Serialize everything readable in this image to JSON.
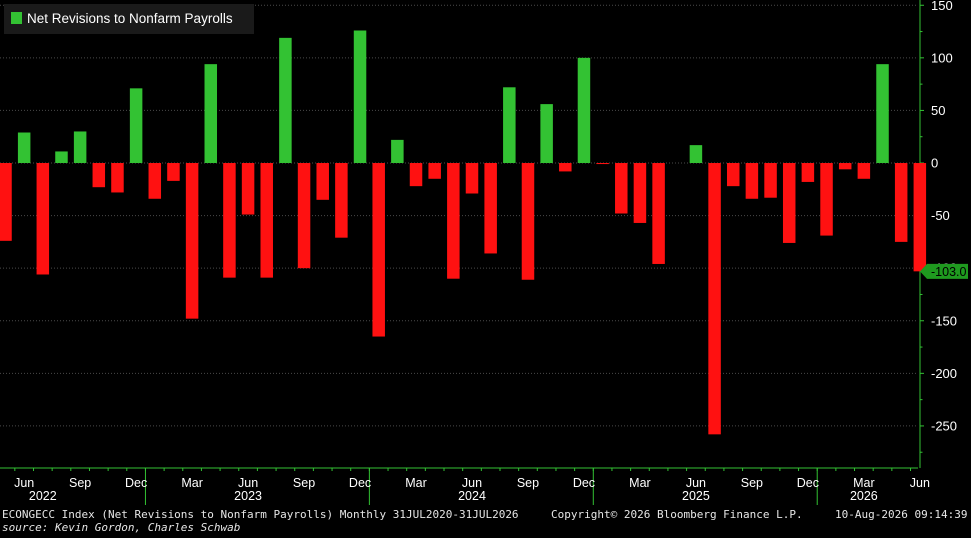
{
  "chart_data": {
    "type": "bar",
    "legend": {
      "label": "Net Revisions to Nonfarm Payrolls",
      "color": "#33c233",
      "placement": "top-left"
    },
    "positive_color": "#33c233",
    "negative_color": "#ff1111",
    "x": [
      "2022-05",
      "2022-06",
      "2022-07",
      "2022-08",
      "2022-09",
      "2022-10",
      "2022-11",
      "2022-12",
      "2023-01",
      "2023-02",
      "2023-03",
      "2023-04",
      "2023-05",
      "2023-06",
      "2023-07",
      "2023-08",
      "2023-09",
      "2023-10",
      "2023-11",
      "2023-12",
      "2024-01",
      "2024-02",
      "2024-03",
      "2024-04",
      "2024-05",
      "2024-06",
      "2024-07",
      "2024-08",
      "2024-09",
      "2024-10",
      "2024-11",
      "2024-12",
      "2025-01",
      "2025-02",
      "2025-03",
      "2025-04",
      "2025-05",
      "2025-06",
      "2025-07",
      "2025-08",
      "2025-09",
      "2025-10",
      "2025-11",
      "2025-12",
      "2026-01",
      "2026-02",
      "2026-03",
      "2026-04",
      "2026-05",
      "2026-06"
    ],
    "values": [
      -74,
      29,
      -106,
      11,
      30,
      -23,
      -28,
      71,
      -34,
      -17,
      -148,
      94,
      -109,
      -49,
      -109,
      119,
      -100,
      -35,
      -71,
      126,
      -165,
      22,
      -22,
      -15,
      -110,
      -29,
      -86,
      72,
      -111,
      56,
      -8,
      100,
      -1,
      -48,
      -57,
      -96,
      0,
      17,
      -258,
      -22,
      -34,
      -33,
      -76,
      -18,
      -69,
      -6,
      -15,
      94,
      -75,
      -103
    ],
    "ylim": [
      -290,
      155
    ],
    "y_ticks": [
      "150",
      "100",
      "50",
      "0",
      "-50",
      "-100",
      "-150",
      "-200",
      "-250"
    ],
    "last_value_label": "-103.0",
    "x_month_labels": [
      {
        "month": "2022-06",
        "label": "Jun"
      },
      {
        "month": "2022-09",
        "label": "Sep"
      },
      {
        "month": "2022-12",
        "label": "Dec"
      },
      {
        "month": "2023-03",
        "label": "Mar"
      },
      {
        "month": "2023-06",
        "label": "Jun"
      },
      {
        "month": "2023-09",
        "label": "Sep"
      },
      {
        "month": "2023-12",
        "label": "Dec"
      },
      {
        "month": "2024-03",
        "label": "Mar"
      },
      {
        "month": "2024-06",
        "label": "Jun"
      },
      {
        "month": "2024-09",
        "label": "Sep"
      },
      {
        "month": "2024-12",
        "label": "Dec"
      },
      {
        "month": "2025-03",
        "label": "Mar"
      },
      {
        "month": "2025-06",
        "label": "Jun"
      },
      {
        "month": "2025-09",
        "label": "Sep"
      },
      {
        "month": "2025-12",
        "label": "Dec"
      },
      {
        "month": "2026-03",
        "label": "Mar"
      },
      {
        "month": "2026-06",
        "label": "Jun"
      }
    ],
    "x_year_labels": [
      {
        "year": "2022",
        "center_month": "2022-07"
      },
      {
        "year": "2023",
        "center_month": "2023-06"
      },
      {
        "year": "2024",
        "center_month": "2024-06"
      },
      {
        "year": "2025",
        "center_month": "2025-06"
      },
      {
        "year": "2026",
        "center_month": "2026-03"
      }
    ],
    "grid": true
  },
  "footer": {
    "index_text": "ECONGECC Index (Net Revisions to Nonfarm Payrolls) Monthly 31JUL2020-31JUL2026",
    "copyright": "Copyright© 2026 Bloomberg Finance L.P.",
    "timestamp": "10-Aug-2026 09:14:39",
    "source": "source: Kevin Gordon, Charles Schwab"
  }
}
